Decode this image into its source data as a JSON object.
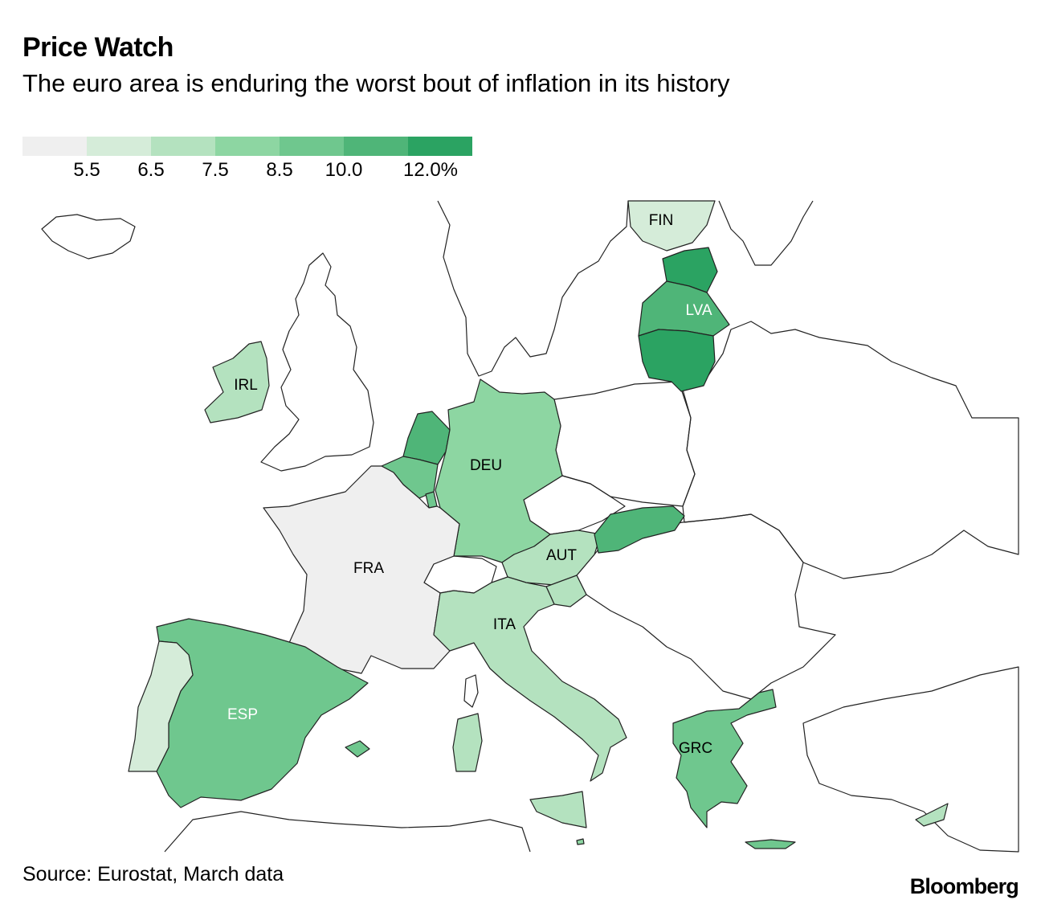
{
  "header": {
    "title": "Price Watch",
    "subtitle": "The euro area is enduring the worst bout of inflation in its history"
  },
  "legend": {
    "colors": [
      "#efefef",
      "#d5ecd9",
      "#b4e2bf",
      "#8dd6a2",
      "#6fc78e",
      "#4fb578",
      "#2ba362"
    ],
    "thresholds": [
      "5.5",
      "6.5",
      "7.5",
      "8.5",
      "10.0",
      "12.0%"
    ]
  },
  "map": {
    "countries": [
      {
        "name": "FIN",
        "label": "FIN",
        "bin": 1,
        "label_color": "#000000"
      },
      {
        "name": "EST",
        "label": "",
        "bin": 6
      },
      {
        "name": "LVA",
        "label": "LVA",
        "bin": 5,
        "label_color": "#ffffff"
      },
      {
        "name": "LTU",
        "label": "",
        "bin": 6
      },
      {
        "name": "IRL",
        "label": "IRL",
        "bin": 2,
        "label_color": "#000000"
      },
      {
        "name": "NLD",
        "label": "",
        "bin": 5
      },
      {
        "name": "BEL",
        "label": "",
        "bin": 4
      },
      {
        "name": "LUX",
        "label": "",
        "bin": 4
      },
      {
        "name": "DEU",
        "label": "DEU",
        "bin": 3,
        "label_color": "#000000"
      },
      {
        "name": "FRA",
        "label": "FRA",
        "bin": 0,
        "label_color": "#000000"
      },
      {
        "name": "AUT",
        "label": "AUT",
        "bin": 2,
        "label_color": "#000000"
      },
      {
        "name": "SVK",
        "label": "",
        "bin": 5
      },
      {
        "name": "SVN",
        "label": "",
        "bin": 2
      },
      {
        "name": "ITA",
        "label": "ITA",
        "bin": 2,
        "label_color": "#000000"
      },
      {
        "name": "ESP",
        "label": "ESP",
        "bin": 4,
        "label_color": "#ffffff"
      },
      {
        "name": "PRT",
        "label": "",
        "bin": 1
      },
      {
        "name": "GRC",
        "label": "GRC",
        "bin": 4,
        "label_color": "#000000"
      },
      {
        "name": "CYP",
        "label": "",
        "bin": 2
      },
      {
        "name": "MLT",
        "label": "",
        "bin": 3
      }
    ]
  },
  "footer": {
    "source": "Source: Eurostat, March data",
    "brand": "Bloomberg"
  }
}
